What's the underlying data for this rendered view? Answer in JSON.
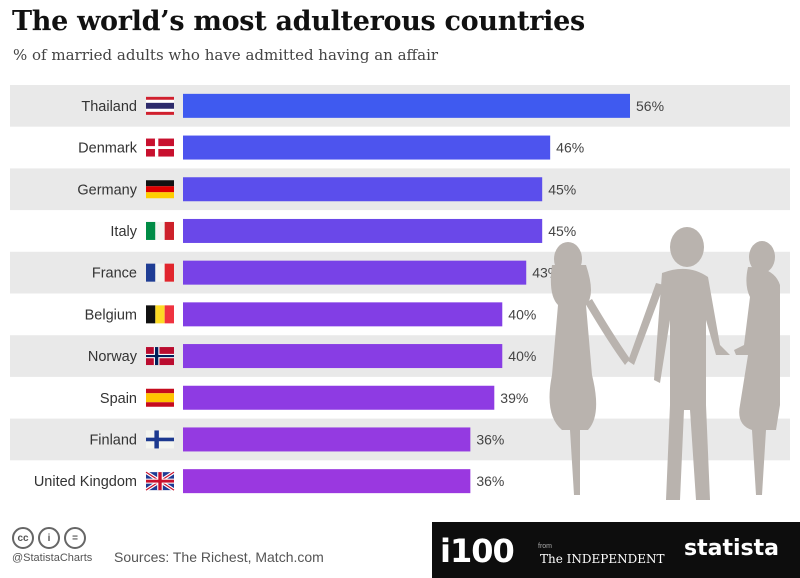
{
  "header": {
    "title": "The world’s most adulterous countries",
    "subtitle": "% of married adults who have admitted having an affair"
  },
  "chart_data": {
    "type": "bar",
    "orientation": "horizontal",
    "categories": [
      "Thailand",
      "Denmark",
      "Germany",
      "Italy",
      "France",
      "Belgium",
      "Norway",
      "Spain",
      "Finland",
      "United Kingdom"
    ],
    "values": [
      56,
      46,
      45,
      45,
      43,
      40,
      40,
      39,
      36,
      36
    ],
    "value_labels": [
      "56%",
      "46%",
      "45%",
      "45%",
      "43%",
      "40%",
      "40%",
      "39%",
      "36%",
      "36%"
    ],
    "title": "The world’s most adulterous countries",
    "subtitle": "% of married adults who have admitted having an affair",
    "xlim": [
      0,
      56
    ],
    "grid": false,
    "row_banding": true,
    "flag_icons": [
      "thailand-flag-icon",
      "denmark-flag-icon",
      "germany-flag-icon",
      "italy-flag-icon",
      "france-flag-icon",
      "belgium-flag-icon",
      "norway-flag-icon",
      "spain-flag-icon",
      "finland-flag-icon",
      "united-kingdom-flag-icon"
    ],
    "bar_colors_gradient": [
      "#3f5af0",
      "#7f3fe6",
      "#9a38e0"
    ]
  },
  "footer": {
    "handle": "@StatistaCharts",
    "sources": "Sources: The Richest, Match.com",
    "brand_primary": "i100",
    "brand_from": "from",
    "brand_secondary": "The INDEPENDENT",
    "brand_statista": "statista",
    "license_icons": [
      "cc-icon",
      "attribution-icon",
      "no-derivatives-icon"
    ]
  },
  "colors": {
    "band": "#e9e9e9",
    "footer_dark": "#0d0d0d",
    "accent_red": "#d2232a",
    "silhouette": "#b9b3ae"
  }
}
